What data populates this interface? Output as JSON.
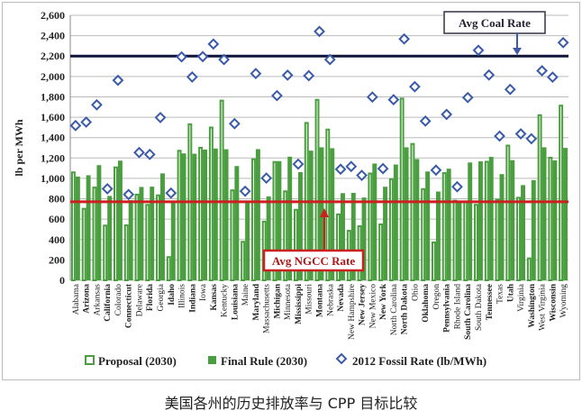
{
  "caption": "美国各州的历史排放率与 CPP 目标比较",
  "chart_data": {
    "type": "bar",
    "ylabel": "lb per MWh",
    "ylim": [
      0,
      2600
    ],
    "yticks": [
      0,
      200,
      400,
      600,
      800,
      1000,
      1200,
      1400,
      1600,
      1800,
      2000,
      2200,
      2400,
      2600
    ],
    "grid": true,
    "legend_placement": "bottom",
    "colors": {
      "bar": "#4a9e3f",
      "fossil": "#3b5ba8",
      "coal_line": "#10163a",
      "ngcc_line": "#cc1f1f"
    },
    "categories": [
      "Alabama",
      "Arizona",
      "Arkansas",
      "California",
      "Colorado",
      "Connecticut",
      "Delaware",
      "Florida",
      "Georgia",
      "Idaho",
      "Illinois",
      "Indiana",
      "Iowa",
      "Kansas",
      "Kentucky",
      "Louisiana",
      "Maine",
      "Maryland",
      "Massachusetts",
      "Michigan",
      "Minnesota",
      "Mississippi",
      "Missouri",
      "Montana",
      "Nebraska",
      "Nevada",
      "New Hampshire",
      "New Jersey",
      "New Mexico",
      "New York",
      "North Carolina",
      "North Dakota",
      "Ohio",
      "Oklahoma",
      "Oregon",
      "Pennsylvania",
      "Rhode Island",
      "South Carolina",
      "South Dakota",
      "Tennessee",
      "Texas",
      "Utah",
      "Virginia",
      "Washington",
      "West Virginia",
      "Wisconsin",
      "Wyoming"
    ],
    "series": [
      {
        "name": "Proposal (2030)",
        "style": "hollow-bar",
        "values": [
          1059,
          702,
          910,
          537,
          1108,
          540,
          841,
          740,
          834,
          228,
          1271,
          1531,
          1301,
          1499,
          1763,
          883,
          378,
          1187,
          576,
          1161,
          873,
          692,
          1544,
          1771,
          1479,
          647,
          486,
          531,
          1048,
          549,
          992,
          1783,
          1338,
          895,
          372,
          1052,
          782,
          772,
          741,
          1163,
          791,
          1322,
          810,
          215,
          1620,
          1203,
          1714
        ]
      },
      {
        "name": "Final Rule (2030)",
        "style": "solid-bar",
        "values": [
          1018,
          1031,
          1130,
          828,
          1174,
          786,
          916,
          919,
          1049,
          771,
          1245,
          1242,
          1283,
          1293,
          1286,
          1121,
          779,
          1287,
          824,
          1169,
          1213,
          1061,
          1272,
          1305,
          1296,
          855,
          858,
          812,
          1146,
          918,
          1136,
          1305,
          1190,
          1068,
          871,
          1095,
          771,
          1156,
          1167,
          1211,
          1042,
          1179,
          934,
          983,
          1305,
          1176,
          1299
        ]
      },
      {
        "name": "2012 Fossil Rate (lb/MWh)",
        "style": "diamond",
        "values": [
          1518,
          1552,
          1722,
          898,
          1962,
          842,
          1254,
          1235,
          1597,
          856,
          2192,
          1995,
          2195,
          2318,
          2166,
          1537,
          874,
          2029,
          1003,
          1812,
          2013,
          1140,
          2008,
          2442,
          2166,
          1090,
          1117,
          1030,
          1798,
          1096,
          1772,
          2368,
          1900,
          1562,
          1081,
          1628,
          918,
          1793,
          2257,
          2015,
          1415,
          1873,
          1437,
          1389,
          2056,
          1993,
          2332
        ]
      }
    ],
    "reference_lines": [
      {
        "name": "Avg Coal Rate",
        "value": 2200
      },
      {
        "name": "Avg NGCC Rate",
        "value": 771
      }
    ]
  }
}
